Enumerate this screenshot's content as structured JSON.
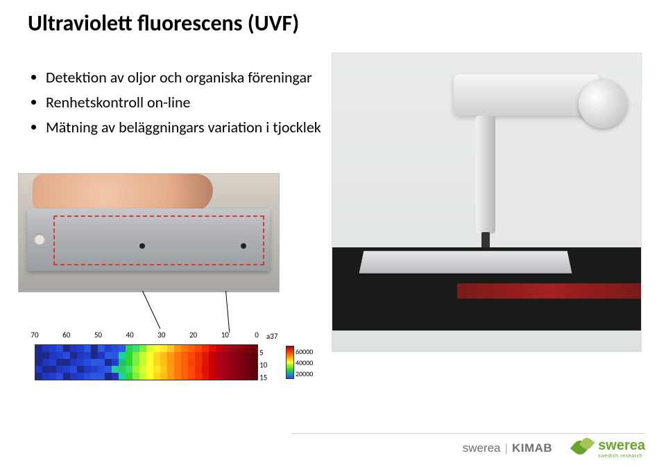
{
  "title": "Ultraviolett fluorescens (UVF)",
  "bullets": [
    "Detektion av oljor och organiska föreningar",
    "Renhetskontroll on-line",
    "Mätning av beläggningars variation i tjocklek"
  ],
  "heatmap": {
    "type": "heatmap",
    "label": "a37",
    "x_ticks": [
      70,
      60,
      50,
      40,
      30,
      20,
      10,
      0
    ],
    "y_ticks": [
      5,
      10,
      15
    ],
    "colorbar_ticks": [
      60000,
      40000,
      20000
    ],
    "background_color": "#ffffff",
    "grid": {
      "cols": 32,
      "rows": 5,
      "colors": [
        [
          "#1e2a8a",
          "#2236c2",
          "#1f3fd0",
          "#2a4be0",
          "#1e2a8a",
          "#2236c2",
          "#1f3fd0",
          "#2c55e6",
          "#1e2a8a",
          "#2f58e0",
          "#1f3fd0",
          "#2a4be0",
          "#2f58e0",
          "#2ccf62",
          "#3de06d",
          "#7cf03c",
          "#d8ff30",
          "#ffff2e",
          "#ffec20",
          "#ffc81a",
          "#ff9a12",
          "#ff7a0a",
          "#ff5f07",
          "#ff4805",
          "#f32a03",
          "#e00e02",
          "#cc0001",
          "#b00018",
          "#a00016",
          "#900014",
          "#800012",
          "#700010"
        ],
        [
          "#1e2a8a",
          "#1e2a8a",
          "#2236c2",
          "#1f3fd0",
          "#2a4be0",
          "#1e2a8a",
          "#2236c2",
          "#1f3fd0",
          "#1e2a8a",
          "#2236c2",
          "#2f58e0",
          "#2c55e6",
          "#1fd0a0",
          "#2fd82f",
          "#7cf03c",
          "#c4ff2e",
          "#ffff2e",
          "#ffd820",
          "#ffbc18",
          "#ff9a12",
          "#ff7a0a",
          "#ff6008",
          "#ff4a06",
          "#f23003",
          "#e01802",
          "#cc0001",
          "#b00018",
          "#a00016",
          "#900014",
          "#800012",
          "#700010",
          "#60000e"
        ],
        [
          "#1e2a8a",
          "#2236c2",
          "#1f3fd0",
          "#1e2a8a",
          "#1e2a8a",
          "#2236c2",
          "#1f3fd0",
          "#2a4be0",
          "#2f58e0",
          "#2c55e6",
          "#1e2a8a",
          "#1f3fd0",
          "#20c070",
          "#2fd82f",
          "#7cf03c",
          "#c4ff2e",
          "#ffff2e",
          "#ffd820",
          "#ffbc18",
          "#ff9a12",
          "#ff7a0a",
          "#ff6008",
          "#ff4004",
          "#f23003",
          "#e01802",
          "#cc0001",
          "#b00018",
          "#a00016",
          "#900014",
          "#800012",
          "#700010",
          "#60000e"
        ],
        [
          "#2236c2",
          "#1e2a8a",
          "#1e2a8a",
          "#2236c2",
          "#1f3fd0",
          "#2a4be0",
          "#1e2a8a",
          "#2236c2",
          "#1f3fd0",
          "#2a4be0",
          "#2f58e0",
          "#1fd0a0",
          "#2ccf62",
          "#3de06d",
          "#9cf82e",
          "#d8ff30",
          "#ffff2e",
          "#ffec20",
          "#ffc81a",
          "#ff9a12",
          "#ff7a0a",
          "#ff5f07",
          "#ff4805",
          "#f32a03",
          "#e00e02",
          "#cc0001",
          "#b00018",
          "#a00016",
          "#900014",
          "#800012",
          "#700010",
          "#60000e"
        ],
        [
          "#1e2a8a",
          "#2236c2",
          "#1f3fd0",
          "#2a4be0",
          "#1e2a8a",
          "#2236c2",
          "#1f3fd0",
          "#2a4be0",
          "#2f58e0",
          "#2c55e6",
          "#1e2a8a",
          "#2236c2",
          "#1fd0a0",
          "#2fd82f",
          "#7cf03c",
          "#c4ff2e",
          "#ffff2e",
          "#ffd820",
          "#ffbc18",
          "#ff9a12",
          "#ff7a0a",
          "#ff6008",
          "#ff4a06",
          "#f23003",
          "#e01802",
          "#cc0001",
          "#b00018",
          "#a00016",
          "#900014",
          "#800012",
          "#700010",
          "#60000e"
        ]
      ]
    }
  },
  "footer": {
    "brand1a": "swerea",
    "brand1b": "KIMAB",
    "brand2": "swerea",
    "brand2_sub": "swedish research"
  }
}
